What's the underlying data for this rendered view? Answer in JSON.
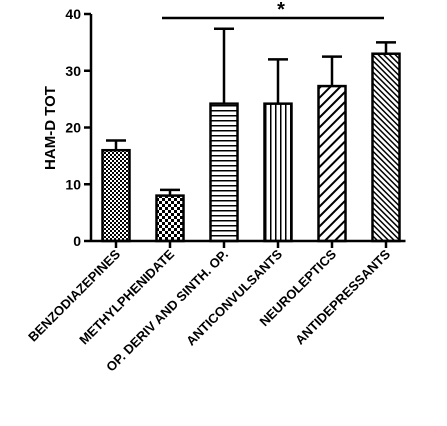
{
  "chart_data": {
    "type": "bar",
    "ylabel": "HAM-D TOT",
    "xlabel": "",
    "ylim": [
      0,
      40
    ],
    "yticks": [
      0,
      10,
      20,
      30,
      40
    ],
    "categories": [
      "BENZODIAZEPINES",
      "METHYLPHENIDATE",
      "OP. DERIV AND SINTH. OP.",
      "ANTICONVULSANTS",
      "NEUROLEPTICS",
      "ANTIDEPRESSANTS"
    ],
    "values": [
      16,
      8,
      24.2,
      24.2,
      27.3,
      33
    ],
    "error_upper": [
      17.7,
      9,
      37.4,
      32,
      32.5,
      35
    ],
    "patterns": [
      "checker-small",
      "checker-large",
      "horizontal-lines",
      "vertical-lines",
      "diagonal-wide",
      "diagonal-dense"
    ],
    "grid": false,
    "significance": {
      "label": "*",
      "from_category": "METHYLPHENIDATE",
      "to_category": "ANTIDEPRESSANTS"
    }
  }
}
